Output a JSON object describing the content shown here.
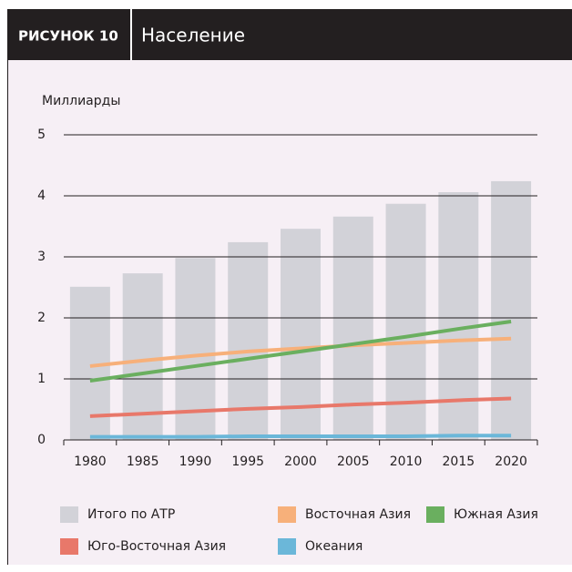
{
  "chart_data": {
    "type": "bar_line",
    "figure_label": "РИСУНОК 10",
    "title": "Население",
    "y_label": "Миллиарды",
    "categories": [
      "1980",
      "1985",
      "1990",
      "1995",
      "2000",
      "2005",
      "2010",
      "2015",
      "2020"
    ],
    "series": [
      {
        "name": "Итого по АТР",
        "kind": "bar",
        "color": "#d2d2d8",
        "values": [
          2.51,
          2.73,
          2.98,
          3.24,
          3.46,
          3.66,
          3.87,
          4.06,
          4.24
        ]
      },
      {
        "name": "Восточная Азия",
        "kind": "line",
        "color": "#f7b07a",
        "values": [
          1.21,
          1.3,
          1.38,
          1.45,
          1.5,
          1.55,
          1.59,
          1.63,
          1.66
        ]
      },
      {
        "name": "Южная Азия",
        "kind": "line",
        "color": "#6aaf5f",
        "values": [
          0.97,
          1.09,
          1.21,
          1.33,
          1.45,
          1.57,
          1.69,
          1.82,
          1.94
        ]
      },
      {
        "name": "Юго-Восточная Азия",
        "kind": "line",
        "color": "#e8786a",
        "values": [
          0.39,
          0.43,
          0.47,
          0.51,
          0.54,
          0.58,
          0.61,
          0.65,
          0.68
        ]
      },
      {
        "name": "Океания",
        "kind": "line",
        "color": "#6bb7d9",
        "values": [
          0.05,
          0.05,
          0.05,
          0.06,
          0.06,
          0.06,
          0.06,
          0.07,
          0.07
        ]
      }
    ],
    "ylim": [
      0,
      5
    ],
    "yticks": [
      0,
      1,
      2,
      3,
      4,
      5
    ],
    "grid": true
  }
}
